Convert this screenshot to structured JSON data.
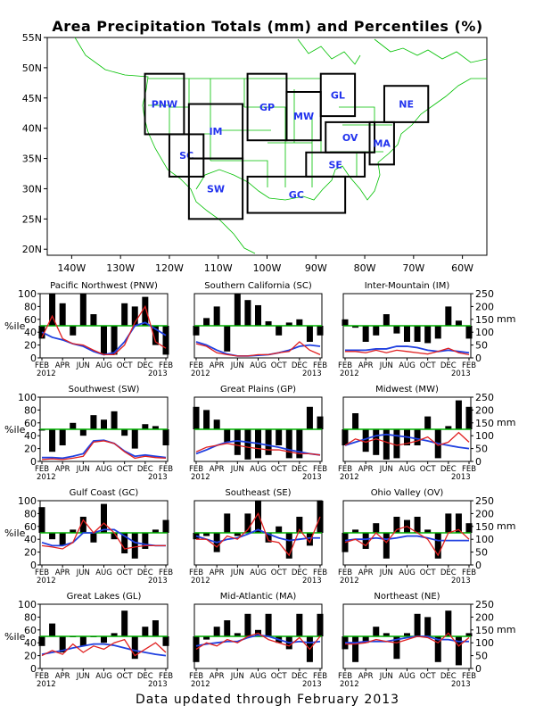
{
  "title": "Area Precipitation Totals (mm) and Percentiles (%)",
  "footer": "Data updated through February 2013",
  "colors": {
    "map_border": "#00c000",
    "region_label": "#2233ee",
    "bar": "#000000",
    "median_line": "#00b000",
    "percentile_line": "#e02020",
    "total_line": "#2040e0"
  },
  "map": {
    "lat_ticks": [
      "55N",
      "50N",
      "45N",
      "40N",
      "35N",
      "30N",
      "25N",
      "20N"
    ],
    "lon_ticks": [
      "140W",
      "130W",
      "120W",
      "110W",
      "100W",
      "90W",
      "80W",
      "70W",
      "60W"
    ],
    "regions": [
      {
        "code": "PNW",
        "lon": [
          -125,
          -117
        ],
        "lat": [
          39,
          49
        ]
      },
      {
        "code": "SC",
        "lon": [
          -120,
          -113
        ],
        "lat": [
          32,
          39
        ]
      },
      {
        "code": "IM",
        "lon": [
          -116,
          -105
        ],
        "lat": [
          35,
          44
        ]
      },
      {
        "code": "SW",
        "lon": [
          -116,
          -105
        ],
        "lat": [
          25,
          35
        ]
      },
      {
        "code": "GP",
        "lon": [
          -104,
          -96
        ],
        "lat": [
          38,
          49
        ]
      },
      {
        "code": "MW",
        "lon": [
          -96,
          -89
        ],
        "lat": [
          38,
          46
        ]
      },
      {
        "code": "GL",
        "lon": [
          -89,
          -82
        ],
        "lat": [
          42,
          49
        ]
      },
      {
        "code": "NE",
        "lon": [
          -76,
          -67
        ],
        "lat": [
          41,
          47
        ]
      },
      {
        "code": "OV",
        "lon": [
          -88,
          -78
        ],
        "lat": [
          36,
          41
        ]
      },
      {
        "code": "MA",
        "lon": [
          -79,
          -74
        ],
        "lat": [
          34,
          41
        ]
      },
      {
        "code": "SE",
        "lon": [
          -92,
          -80
        ],
        "lat": [
          32,
          36
        ]
      },
      {
        "code": "GC",
        "lon": [
          -104,
          -84
        ],
        "lat": [
          26,
          32
        ]
      }
    ]
  },
  "chart_data": [
    {
      "type": "bar",
      "title": "Pacific Northwest (PNW)",
      "ylabel_left": "%ile",
      "ylabel_right": "mm",
      "x": [
        "FEB 2012",
        "MAR",
        "APR",
        "MAY",
        "JUN",
        "JUL",
        "AUG",
        "SEP",
        "OCT",
        "NOV",
        "DEC",
        "JAN",
        "FEB 2013"
      ],
      "percentile_ticks": [
        0,
        20,
        40,
        60,
        80,
        100
      ],
      "mm_ticks": [
        0,
        50,
        100,
        150,
        200,
        250
      ],
      "percentiles": [
        30,
        100,
        85,
        35,
        100,
        68,
        5,
        5,
        85,
        80,
        95,
        20,
        5
      ],
      "pct_line": [
        32,
        65,
        30,
        22,
        20,
        12,
        5,
        5,
        20,
        55,
        80,
        25,
        15
      ],
      "mm_line": [
        40,
        32,
        28,
        22,
        18,
        10,
        5,
        8,
        25,
        50,
        55,
        45,
        35
      ]
    },
    {
      "type": "bar",
      "title": "Southern California (SC)",
      "ylabel_left": "%ile",
      "ylabel_right": "mm",
      "x": [
        "FEB 2012",
        "MAR",
        "APR",
        "MAY",
        "JUN",
        "JUL",
        "AUG",
        "SEP",
        "OCT",
        "NOV",
        "DEC",
        "JAN",
        "FEB 2013"
      ],
      "percentile_ticks": [
        0,
        20,
        40,
        60,
        80,
        100
      ],
      "mm_ticks": [
        0,
        50,
        100,
        150,
        200,
        250
      ],
      "percentiles": [
        35,
        62,
        80,
        10,
        100,
        90,
        82,
        57,
        35,
        55,
        60,
        25,
        35
      ],
      "pct_line": [
        22,
        18,
        8,
        5,
        3,
        3,
        5,
        5,
        8,
        10,
        25,
        12,
        5
      ],
      "mm_line": [
        25,
        20,
        12,
        6,
        3,
        3,
        4,
        5,
        8,
        12,
        18,
        20,
        18
      ]
    },
    {
      "type": "bar",
      "title": "Inter-Mountain (IM)",
      "ylabel_left": "%ile",
      "ylabel_right": "mm",
      "x": [
        "FEB 2012",
        "MAR",
        "APR",
        "MAY",
        "JUN",
        "JUL",
        "AUG",
        "SEP",
        "OCT",
        "NOV",
        "DEC",
        "JAN",
        "FEB 2013"
      ],
      "percentiles": [
        60,
        47,
        25,
        35,
        68,
        38,
        25,
        25,
        23,
        30,
        80,
        58,
        30
      ],
      "pct_line": [
        10,
        10,
        8,
        12,
        8,
        12,
        10,
        8,
        6,
        10,
        15,
        8,
        5
      ],
      "mm_line": [
        12,
        12,
        12,
        14,
        14,
        18,
        18,
        16,
        12,
        10,
        12,
        10,
        8
      ]
    },
    {
      "type": "bar",
      "title": "Southwest (SW)",
      "ylabel_left": "%ile",
      "ylabel_right": "mm",
      "x": [
        "FEB 2012",
        "MAR",
        "APR",
        "MAY",
        "JUN",
        "JUL",
        "AUG",
        "SEP",
        "OCT",
        "NOV",
        "DEC",
        "JAN",
        "FEB 2013"
      ],
      "percentiles": [
        48,
        15,
        25,
        60,
        40,
        72,
        65,
        78,
        40,
        20,
        58,
        55,
        25
      ],
      "pct_line": [
        3,
        4,
        3,
        5,
        8,
        30,
        32,
        28,
        15,
        5,
        8,
        6,
        5
      ],
      "mm_line": [
        6,
        6,
        5,
        8,
        12,
        32,
        33,
        28,
        16,
        8,
        10,
        8,
        6
      ]
    },
    {
      "type": "bar",
      "title": "Great Plains (GP)",
      "ylabel_left": "%ile",
      "ylabel_right": "mm",
      "x": [
        "FEB 2012",
        "MAR",
        "APR",
        "MAY",
        "JUN",
        "JUL",
        "AUG",
        "SEP",
        "OCT",
        "NOV",
        "DEC",
        "JAN",
        "FEB 2013"
      ],
      "percentiles": [
        85,
        80,
        65,
        30,
        10,
        3,
        5,
        10,
        25,
        5,
        5,
        85,
        70
      ],
      "pct_line": [
        15,
        22,
        25,
        28,
        25,
        22,
        20,
        18,
        18,
        15,
        12,
        12,
        10
      ],
      "mm_line": [
        12,
        18,
        25,
        30,
        32,
        30,
        28,
        25,
        22,
        18,
        15,
        12,
        10
      ]
    },
    {
      "type": "bar",
      "title": "Midwest (MW)",
      "ylabel_left": "%ile",
      "ylabel_right": "mm",
      "x": [
        "FEB 2012",
        "MAR",
        "APR",
        "MAY",
        "JUN",
        "JUL",
        "AUG",
        "SEP",
        "OCT",
        "NOV",
        "DEC",
        "JAN",
        "FEB 2013"
      ],
      "percentiles": [
        25,
        75,
        15,
        10,
        3,
        5,
        25,
        25,
        70,
        5,
        55,
        95,
        85
      ],
      "pct_line": [
        25,
        35,
        30,
        35,
        30,
        25,
        28,
        32,
        38,
        25,
        30,
        45,
        30
      ],
      "mm_line": [
        25,
        30,
        35,
        40,
        42,
        40,
        38,
        35,
        32,
        28,
        25,
        22,
        20
      ]
    },
    {
      "type": "bar",
      "title": "Gulf Coast (GC)",
      "ylabel_left": "%ile",
      "ylabel_right": "mm",
      "x": [
        "FEB 2012",
        "MAR",
        "APR",
        "MAY",
        "JUN",
        "JUL",
        "AUG",
        "SEP",
        "OCT",
        "NOV",
        "DEC",
        "JAN",
        "FEB 2013"
      ],
      "percentiles": [
        90,
        40,
        30,
        55,
        75,
        35,
        95,
        40,
        18,
        10,
        25,
        55,
        70
      ],
      "pct_line": [
        30,
        28,
        25,
        35,
        70,
        50,
        65,
        50,
        25,
        28,
        30,
        30,
        30
      ],
      "mm_line": [
        35,
        30,
        30,
        35,
        50,
        50,
        55,
        55,
        45,
        35,
        32,
        30,
        30
      ]
    },
    {
      "type": "bar",
      "title": "Southeast (SE)",
      "ylabel_left": "%ile",
      "ylabel_right": "mm",
      "x": [
        "FEB 2012",
        "MAR",
        "APR",
        "MAY",
        "JUN",
        "JUL",
        "AUG",
        "SEP",
        "OCT",
        "NOV",
        "DEC",
        "JAN",
        "FEB 2013"
      ],
      "percentiles": [
        40,
        45,
        20,
        80,
        45,
        80,
        100,
        35,
        60,
        10,
        75,
        30,
        100
      ],
      "pct_line": [
        40,
        40,
        28,
        45,
        40,
        55,
        80,
        38,
        35,
        15,
        55,
        35,
        75
      ],
      "mm_line": [
        45,
        40,
        35,
        40,
        42,
        48,
        55,
        48,
        42,
        38,
        40,
        42,
        42
      ]
    },
    {
      "type": "bar",
      "title": "Ohio Valley (OV)",
      "ylabel_left": "%ile",
      "ylabel_right": "mm",
      "x": [
        "FEB 2012",
        "MAR",
        "APR",
        "MAY",
        "JUN",
        "JUL",
        "AUG",
        "SEP",
        "OCT",
        "NOV",
        "DEC",
        "JAN",
        "FEB 2013"
      ],
      "percentiles": [
        20,
        55,
        25,
        65,
        10,
        75,
        70,
        75,
        55,
        10,
        80,
        80,
        65
      ],
      "pct_line": [
        35,
        40,
        30,
        50,
        35,
        55,
        60,
        50,
        40,
        15,
        50,
        55,
        40
      ],
      "mm_line": [
        38,
        40,
        40,
        42,
        40,
        42,
        45,
        45,
        42,
        38,
        38,
        38,
        38
      ]
    },
    {
      "type": "bar",
      "title": "Great Lakes (GL)",
      "ylabel_left": "%ile",
      "ylabel_right": "mm",
      "x": [
        "FEB 2012",
        "MAR",
        "APR",
        "MAY",
        "JUN",
        "JUL",
        "AUG",
        "SEP",
        "OCT",
        "NOV",
        "DEC",
        "JAN",
        "FEB 2013"
      ],
      "percentiles": [
        35,
        70,
        25,
        50,
        35,
        50,
        40,
        55,
        90,
        15,
        65,
        75,
        35
      ],
      "pct_line": [
        20,
        28,
        22,
        38,
        25,
        35,
        30,
        40,
        45,
        20,
        30,
        40,
        25
      ],
      "mm_line": [
        22,
        25,
        28,
        32,
        35,
        38,
        38,
        36,
        32,
        28,
        25,
        22,
        20
      ]
    },
    {
      "type": "bar",
      "title": "Mid-Atlantic (MA)",
      "ylabel_left": "%ile",
      "ylabel_right": "mm",
      "x": [
        "FEB 2012",
        "MAR",
        "APR",
        "MAY",
        "JUN",
        "JUL",
        "AUG",
        "SEP",
        "OCT",
        "NOV",
        "DEC",
        "JAN",
        "FEB 2013"
      ],
      "percentiles": [
        10,
        45,
        65,
        75,
        55,
        85,
        60,
        85,
        40,
        30,
        85,
        10,
        85
      ],
      "pct_line": [
        30,
        40,
        35,
        45,
        40,
        50,
        55,
        45,
        40,
        35,
        48,
        30,
        50
      ],
      "mm_line": [
        35,
        38,
        40,
        42,
        42,
        48,
        52,
        50,
        45,
        40,
        42,
        40,
        42
      ]
    },
    {
      "type": "bar",
      "title": "Northeast (NE)",
      "ylabel_left": "%ile",
      "ylabel_right": "mm",
      "x": [
        "FEB 2012",
        "MAR",
        "APR",
        "MAY",
        "JUN",
        "JUL",
        "AUG",
        "SEP",
        "OCT",
        "NOV",
        "DEC",
        "JAN",
        "FEB 2013"
      ],
      "percentiles": [
        30,
        10,
        40,
        65,
        55,
        15,
        55,
        85,
        80,
        10,
        90,
        5,
        55
      ],
      "pct_line": [
        38,
        38,
        40,
        45,
        42,
        40,
        45,
        50,
        48,
        40,
        55,
        35,
        48
      ],
      "mm_line": [
        40,
        40,
        42,
        42,
        42,
        45,
        48,
        50,
        50,
        45,
        45,
        42,
        42
      ]
    }
  ]
}
